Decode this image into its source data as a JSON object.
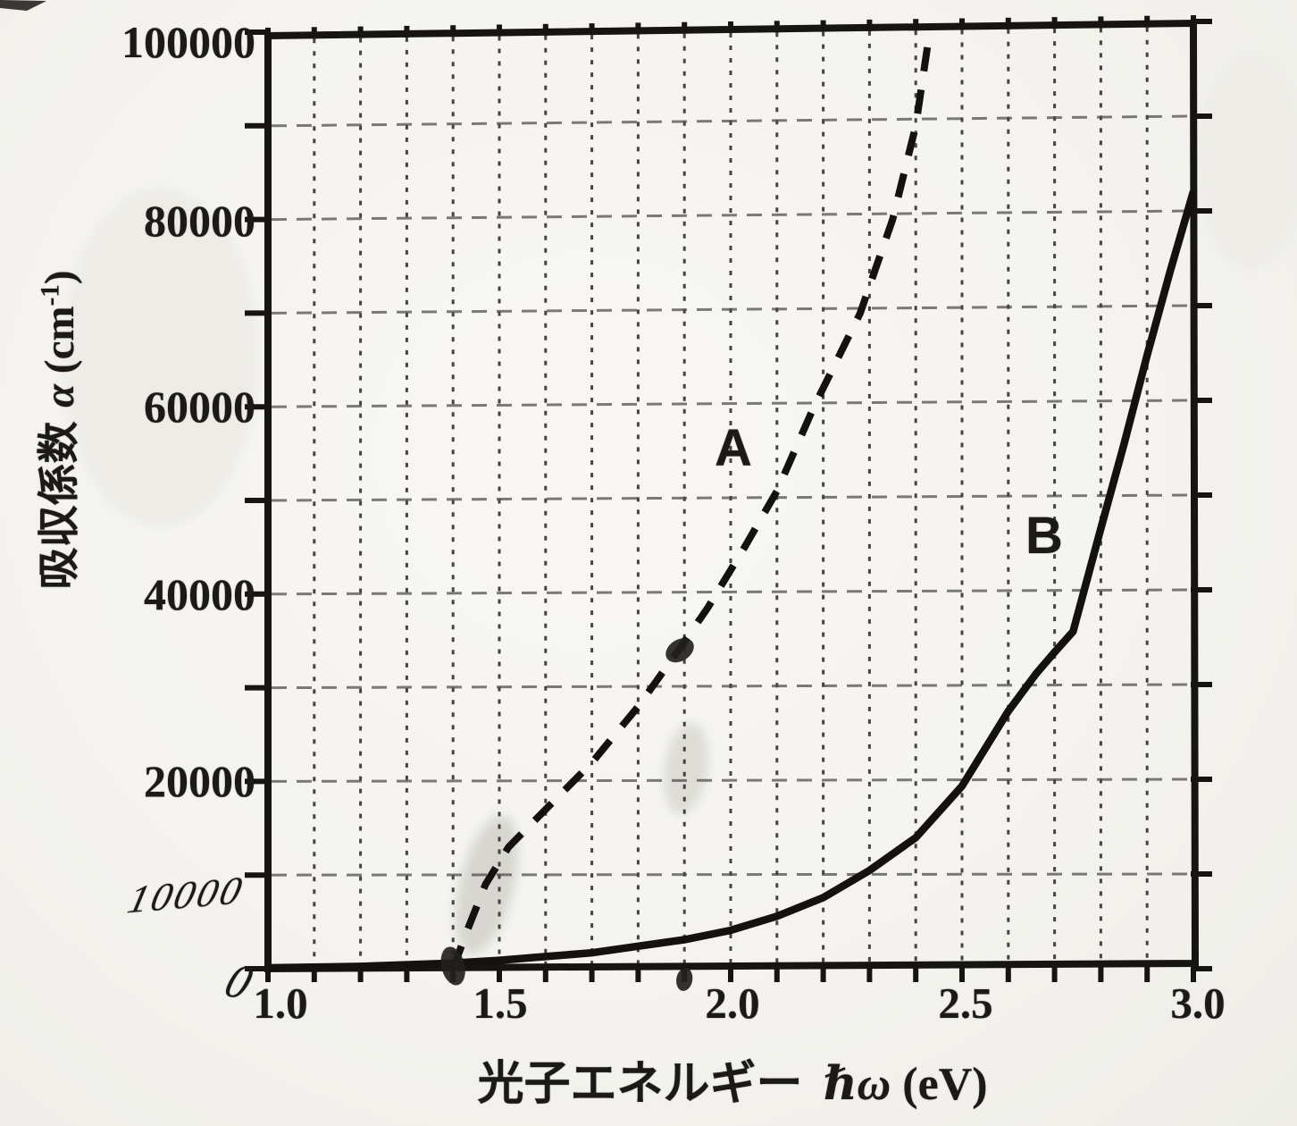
{
  "figure": {
    "description": "Scanned textbook graph of absorption coefficient versus photon energy with two curves",
    "curve_a_label": "A",
    "curve_b_label": "B"
  },
  "axes": {
    "y_title_cjk": "吸収係数",
    "y_title_symbol": "α",
    "y_title_unit_open": "(cm",
    "y_title_unit_sup": "-1",
    "y_title_unit_close": ")",
    "x_title_cjk": "光子エネルギー",
    "x_title_symbol": "ℏω",
    "x_title_unit": "(eV)"
  },
  "chart_data": {
    "type": "line",
    "title": "",
    "xlabel": "光子エネルギー ℏω (eV)",
    "ylabel": "吸収係数 α (cm⁻¹)",
    "xlim": [
      1.0,
      3.0
    ],
    "ylim": [
      0,
      100000
    ],
    "grid": true,
    "x_grid_step": 0.1,
    "y_grid_step": 10000,
    "x_tick_labels": [
      "1.0",
      "1.5",
      "2.0",
      "2.5",
      "3.0"
    ],
    "x_tick_values": [
      1.0,
      1.5,
      2.0,
      2.5,
      3.0
    ],
    "y_tick_labels": [
      "20000",
      "40000",
      "60000",
      "80000",
      "100000"
    ],
    "y_tick_values": [
      20000,
      40000,
      60000,
      80000,
      100000
    ],
    "handwritten": {
      "y_label_10000": "10000",
      "y_label_0": "0",
      "dot_on_axis_x": 1.4,
      "dot_on_curve_a": [
        1.89,
        34000
      ],
      "dot_below_axis_x": 1.9
    },
    "series": [
      {
        "name": "A",
        "style": "dashed",
        "points": [
          [
            1.4,
            0
          ],
          [
            1.43,
            4000
          ],
          [
            1.47,
            9000
          ],
          [
            1.52,
            13000
          ],
          [
            1.6,
            17000
          ],
          [
            1.7,
            22000
          ],
          [
            1.8,
            28000
          ],
          [
            1.88,
            33500
          ],
          [
            1.95,
            38500
          ],
          [
            2.03,
            45000
          ],
          [
            2.1,
            51000
          ],
          [
            2.18,
            60000
          ],
          [
            2.28,
            70000
          ],
          [
            2.35,
            80000
          ],
          [
            2.4,
            90000
          ],
          [
            2.43,
            100000
          ]
        ]
      },
      {
        "name": "B",
        "style": "solid",
        "points": [
          [
            1.0,
            100
          ],
          [
            1.2,
            250
          ],
          [
            1.4,
            600
          ],
          [
            1.5,
            900
          ],
          [
            1.6,
            1300
          ],
          [
            1.7,
            1700
          ],
          [
            1.8,
            2400
          ],
          [
            1.9,
            3100
          ],
          [
            2.0,
            4100
          ],
          [
            2.1,
            5600
          ],
          [
            2.2,
            7600
          ],
          [
            2.3,
            10500
          ],
          [
            2.4,
            14000
          ],
          [
            2.5,
            19500
          ],
          [
            2.6,
            27500
          ],
          [
            2.66,
            31500
          ],
          [
            2.7,
            33800
          ],
          [
            2.74,
            36000
          ],
          [
            2.8,
            47000
          ],
          [
            2.85,
            56000
          ],
          [
            2.9,
            65500
          ],
          [
            2.95,
            74500
          ],
          [
            3.0,
            83000
          ]
        ]
      }
    ]
  }
}
